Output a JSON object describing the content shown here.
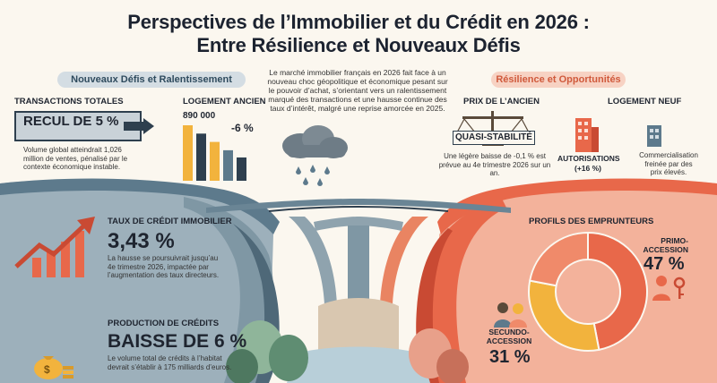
{
  "title": {
    "line1": "Perspectives de l’Immobilier et du Crédit en 2026 :",
    "line2": "Entre Résilience et Nouveaux Défis"
  },
  "left_header": "Nouveaux Défis et Ralentissement",
  "right_header": "Résilience et Opportunités",
  "intro": "Le marché immobilier français en 2026 fait face à un nouveau choc géopolitique et économique pesant sur le pouvoir d’achat, s’orientant vers un ralentissement marqué des transactions et une hausse continue des taux d’intérêt, malgré une reprise amorcée en 2025.",
  "transactions": {
    "heading": "TRANSACTIONS TOTALES",
    "value": "RECUL DE 5 %",
    "desc_lines": [
      "Volume global atteindrait 1,026",
      "million de ventes, pénalisé par le",
      "contexte économique instable."
    ]
  },
  "logement_ancien": {
    "heading": "LOGEMENT ANCIEN",
    "value": "890 000",
    "change": "-6 %",
    "bars_relative": [
      1.0,
      0.85,
      0.7,
      0.55,
      0.42
    ]
  },
  "taux": {
    "heading": "TAUX DE CRÉDIT IMMOBILIER",
    "value": "3,43 %",
    "desc_lines": [
      "La hausse se poursuivrait jusqu’au",
      "4e trimestre 2026, impactée par",
      "l’augmentation des taux directeurs."
    ]
  },
  "production": {
    "heading": "PRODUCTION DE CRÉDITS",
    "value": "BAISSE DE 6 %",
    "desc_lines": [
      "Le volume total de crédits à l’habitat",
      "devrait s’établir à 175 milliards d’euros."
    ]
  },
  "prix_ancien": {
    "heading": "PRIX DE L’ANCIEN",
    "value": "QUASI-STABILITÉ",
    "desc_lines": [
      "Une légère baisse de -0,1 % est",
      "prévue au 4e trimestre 2026 sur un an."
    ]
  },
  "logement_neuf": {
    "heading": "LOGEMENT NEUF",
    "autorisations_label": "AUTORISATIONS",
    "autorisations_value": "(+16 %)",
    "desc_lines": [
      "Commercialisation",
      "freinée par des",
      "prix élevés."
    ]
  },
  "emprunteurs": {
    "heading": "PROFILS DES EMPRUNTEURS",
    "primo_label_1": "PRIMO-",
    "primo_label_2": "ACCESSION",
    "primo_value": "47 %",
    "secundo_label_1": "SECUNDO-",
    "secundo_label_2": "ACCESSION",
    "secundo_value": "31 %"
  },
  "chart_data": {
    "type": "pie",
    "labels": [
      "PRIMO-ACCESSION",
      "SECUNDO-ACCESSION"
    ],
    "values": [
      47,
      31
    ],
    "other_value": 22
  },
  "colors": {
    "left_blue": "#5d7a8c",
    "left_dark": "#2e3f4e",
    "orange": "#e8684a",
    "orange_light": "#f08a6a",
    "yellow": "#f2b33d",
    "bridge_grey": "#8fa3ae"
  }
}
